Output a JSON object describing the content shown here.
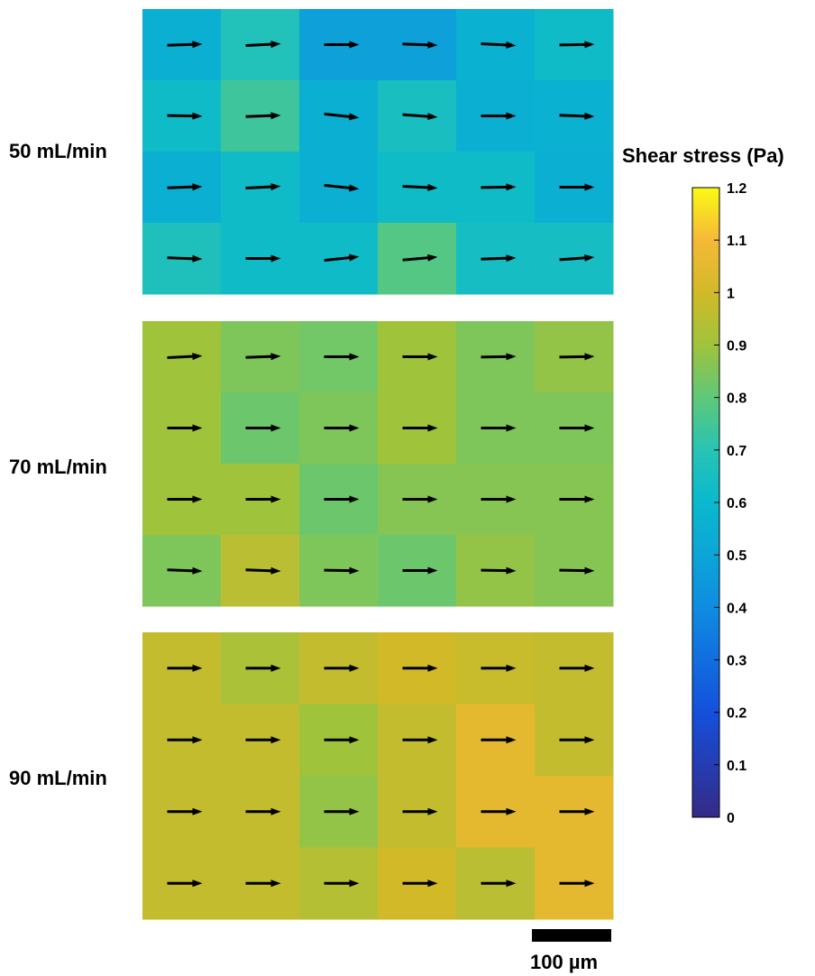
{
  "chart_data": {
    "type": "heatmap",
    "colorbar": {
      "title": "Shear stress (Pa)",
      "range": [
        0,
        1.2
      ],
      "ticks": [
        0,
        0.1,
        0.2,
        0.3,
        0.4,
        0.5,
        0.6,
        0.7,
        0.8,
        0.9,
        1,
        1.1,
        1.2
      ],
      "tick_labels": [
        "0",
        "0.1",
        "0.2",
        "0.3",
        "0.4",
        "0.5",
        "0.6",
        "0.7",
        "0.8",
        "0.9",
        "1",
        "1.1",
        "1.2"
      ],
      "colormap": "parula"
    },
    "panels": [
      {
        "label": "50 mL/min",
        "rows": 4,
        "cols": 6,
        "values": [
          [
            0.55,
            0.68,
            0.48,
            0.48,
            0.56,
            0.62
          ],
          [
            0.62,
            0.74,
            0.55,
            0.65,
            0.55,
            0.56
          ],
          [
            0.55,
            0.62,
            0.55,
            0.62,
            0.62,
            0.55
          ],
          [
            0.67,
            0.62,
            0.62,
            0.78,
            0.64,
            0.64
          ]
        ],
        "vector_angles_deg": [
          [
            -2,
            -3,
            0,
            2,
            3,
            -1
          ],
          [
            1,
            -2,
            6,
            4,
            0,
            2
          ],
          [
            -2,
            -3,
            6,
            3,
            -1,
            0
          ],
          [
            2,
            0,
            -6,
            -5,
            -2,
            -4
          ]
        ]
      },
      {
        "label": "70 mL/min",
        "rows": 4,
        "cols": 6,
        "values": [
          [
            0.9,
            0.85,
            0.83,
            0.9,
            0.85,
            0.88
          ],
          [
            0.9,
            0.82,
            0.85,
            0.9,
            0.85,
            0.85
          ],
          [
            0.9,
            0.9,
            0.82,
            0.86,
            0.86,
            0.86
          ],
          [
            0.85,
            0.95,
            0.85,
            0.82,
            0.88,
            0.86
          ]
        ],
        "vector_angles_deg": [
          [
            -3,
            -2,
            0,
            0,
            -1,
            -1
          ],
          [
            0,
            0,
            0,
            0,
            0,
            0
          ],
          [
            0,
            0,
            0,
            0,
            0,
            0
          ],
          [
            2,
            2,
            1,
            0,
            1,
            1
          ]
        ]
      },
      {
        "label": "90 mL/min",
        "rows": 4,
        "cols": 6,
        "values": [
          [
            0.97,
            0.92,
            0.97,
            1.0,
            0.98,
            0.97
          ],
          [
            0.97,
            0.97,
            0.9,
            0.97,
            1.05,
            0.97
          ],
          [
            0.97,
            0.97,
            0.88,
            0.97,
            1.05,
            1.05
          ],
          [
            0.97,
            0.97,
            0.94,
            1.0,
            0.95,
            1.05
          ]
        ],
        "vector_angles_deg": [
          [
            0,
            0,
            0,
            0,
            0,
            0
          ],
          [
            0,
            0,
            0,
            0,
            0,
            0
          ],
          [
            0,
            0,
            0,
            0,
            0,
            0
          ],
          [
            0,
            0,
            0,
            0,
            0,
            0
          ]
        ]
      }
    ],
    "scale_bar": {
      "label": "100 µm"
    }
  }
}
